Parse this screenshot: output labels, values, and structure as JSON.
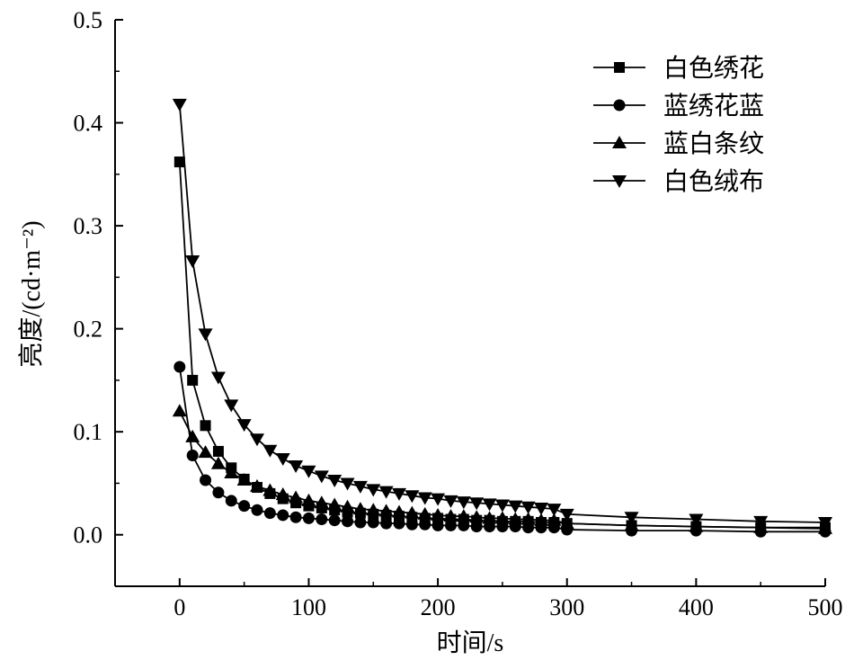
{
  "chart_data": {
    "type": "line",
    "title": "",
    "xlabel": "时间/s",
    "ylabel": "亮度/(cd·m⁻²)",
    "xlim": [
      -50,
      500
    ],
    "ylim": [
      -0.05,
      0.5
    ],
    "xticks": [
      0,
      100,
      200,
      300,
      400,
      500
    ],
    "xtick_labels": [
      "0",
      "100",
      "200",
      "300",
      "400",
      "500"
    ],
    "yticks": [
      0.0,
      0.1,
      0.2,
      0.3,
      0.4,
      0.5
    ],
    "ytick_labels": [
      "0.0",
      "0.1",
      "0.2",
      "0.3",
      "0.4",
      "0.5"
    ],
    "grid": false,
    "legend_position": "top-right",
    "series": [
      {
        "name": "白色绣花",
        "marker": "square",
        "x": [
          0,
          10,
          20,
          30,
          40,
          50,
          60,
          70,
          80,
          90,
          100,
          110,
          120,
          130,
          140,
          150,
          160,
          170,
          180,
          190,
          200,
          210,
          220,
          230,
          240,
          250,
          260,
          270,
          280,
          290,
          300,
          350,
          400,
          450,
          500
        ],
        "y": [
          0.362,
          0.15,
          0.106,
          0.081,
          0.065,
          0.054,
          0.046,
          0.04,
          0.035,
          0.031,
          0.028,
          0.026,
          0.024,
          0.022,
          0.021,
          0.02,
          0.019,
          0.018,
          0.017,
          0.016,
          0.016,
          0.015,
          0.015,
          0.014,
          0.014,
          0.013,
          0.013,
          0.013,
          0.012,
          0.012,
          0.011,
          0.009,
          0.008,
          0.007,
          0.007
        ]
      },
      {
        "name": "蓝绣花蓝",
        "marker": "circle",
        "x": [
          0,
          10,
          20,
          30,
          40,
          50,
          60,
          70,
          80,
          90,
          100,
          110,
          120,
          130,
          140,
          150,
          160,
          170,
          180,
          190,
          200,
          210,
          220,
          230,
          240,
          250,
          260,
          270,
          280,
          290,
          300,
          350,
          400,
          450,
          500
        ],
        "y": [
          0.163,
          0.077,
          0.053,
          0.041,
          0.033,
          0.028,
          0.024,
          0.021,
          0.019,
          0.017,
          0.016,
          0.015,
          0.014,
          0.013,
          0.012,
          0.012,
          0.011,
          0.011,
          0.01,
          0.01,
          0.009,
          0.009,
          0.009,
          0.008,
          0.008,
          0.008,
          0.008,
          0.007,
          0.007,
          0.007,
          0.005,
          0.004,
          0.004,
          0.003,
          0.003
        ]
      },
      {
        "name": "蓝白条纹",
        "marker": "triangle-up",
        "x": [
          0,
          10,
          20,
          30,
          40,
          50,
          60,
          70,
          80,
          90,
          100,
          110,
          120,
          130,
          140,
          150,
          160,
          170,
          180,
          190,
          200,
          210,
          220,
          230,
          240,
          250,
          260,
          270,
          280,
          290,
          300,
          350,
          400,
          450,
          500
        ],
        "y": [
          0.12,
          0.095,
          0.08,
          0.069,
          0.06,
          0.053,
          0.047,
          0.043,
          0.039,
          0.036,
          0.033,
          0.031,
          0.029,
          0.027,
          0.025,
          0.024,
          0.023,
          0.022,
          0.021,
          0.02,
          0.019,
          0.018,
          0.018,
          0.017,
          0.016,
          0.016,
          0.015,
          0.015,
          0.014,
          0.014,
          0.011,
          0.009,
          0.008,
          0.007,
          0.006
        ]
      },
      {
        "name": "白色绒布",
        "marker": "triangle-down",
        "x": [
          0,
          10,
          20,
          30,
          40,
          50,
          60,
          70,
          80,
          90,
          100,
          110,
          120,
          130,
          140,
          150,
          160,
          170,
          180,
          190,
          200,
          210,
          220,
          230,
          240,
          250,
          260,
          270,
          280,
          290,
          300,
          350,
          400,
          450,
          500
        ],
        "y": [
          0.418,
          0.266,
          0.195,
          0.153,
          0.126,
          0.107,
          0.093,
          0.082,
          0.074,
          0.067,
          0.062,
          0.057,
          0.053,
          0.05,
          0.047,
          0.044,
          0.042,
          0.04,
          0.038,
          0.036,
          0.035,
          0.033,
          0.032,
          0.031,
          0.03,
          0.029,
          0.028,
          0.027,
          0.026,
          0.025,
          0.02,
          0.017,
          0.015,
          0.013,
          0.012
        ]
      }
    ]
  }
}
